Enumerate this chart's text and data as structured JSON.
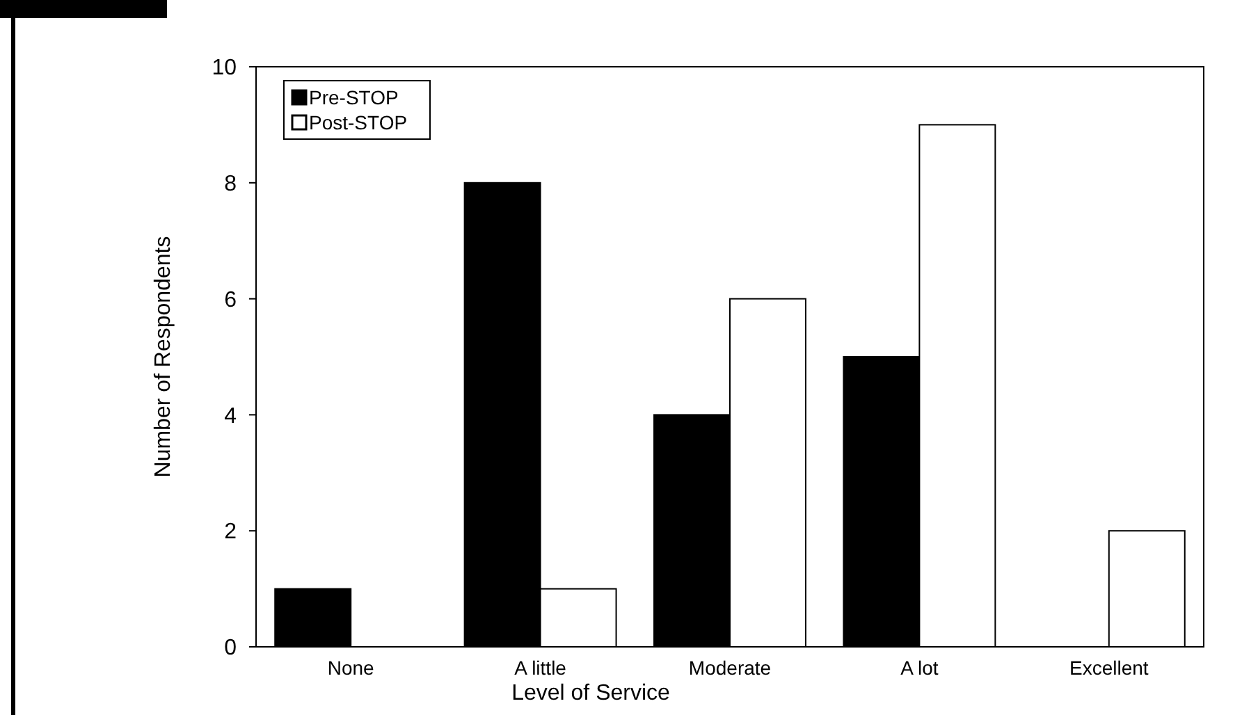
{
  "chart_data": {
    "type": "bar",
    "xlabel": "Level of Service",
    "ylabel": "Number of Respondents",
    "categories": [
      "None",
      "A little",
      "Moderate",
      "A lot",
      "Excellent"
    ],
    "series": [
      {
        "name": "Pre-STOP",
        "color": "#000000",
        "values": [
          1,
          8,
          4,
          5,
          0
        ]
      },
      {
        "name": "Post-STOP",
        "color": "#ffffff",
        "values": [
          0,
          1,
          6,
          9,
          2
        ]
      }
    ],
    "ylim": [
      0,
      10
    ],
    "yticks": [
      0,
      2,
      4,
      6,
      8,
      10
    ],
    "grid": false,
    "legend": "top left"
  }
}
